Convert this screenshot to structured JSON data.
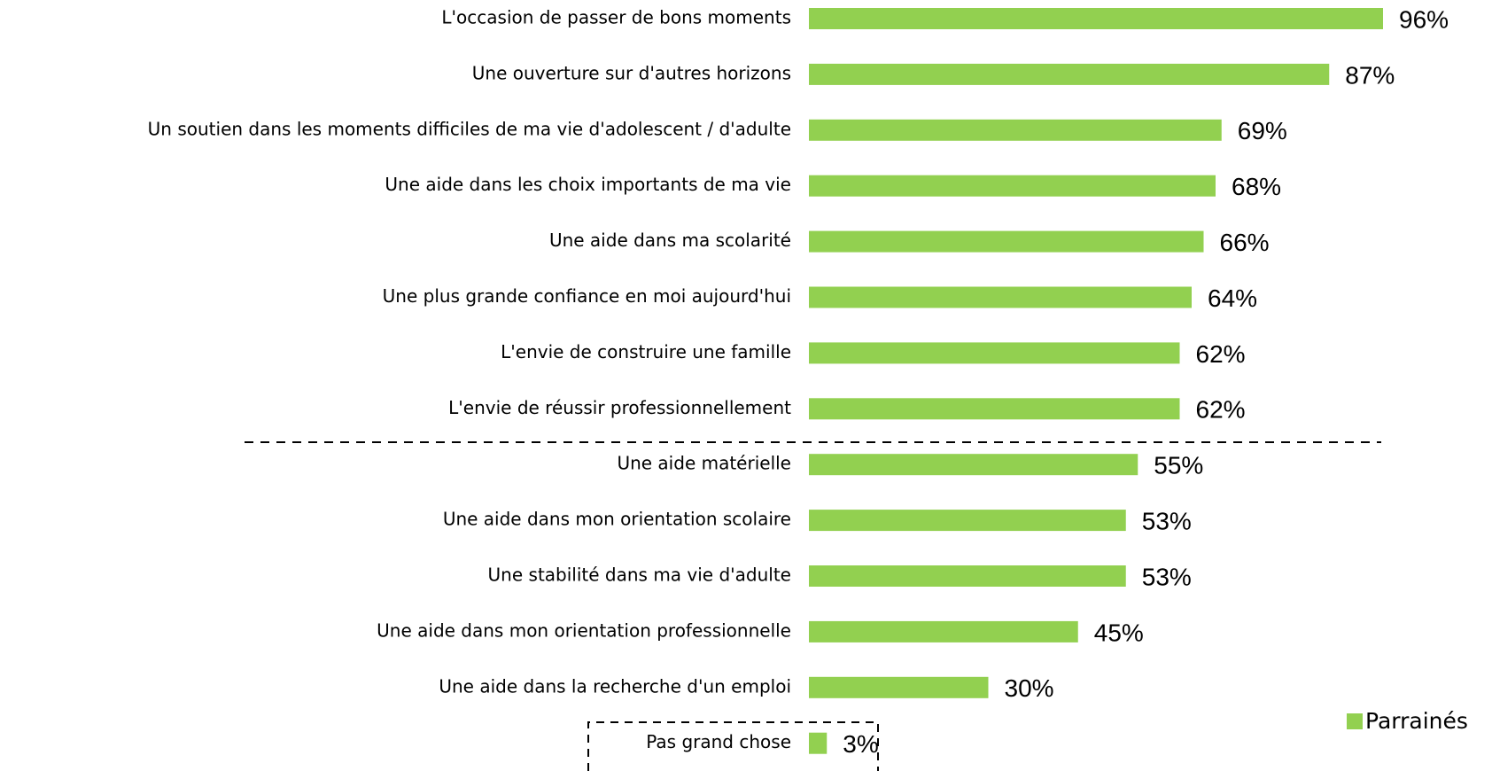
{
  "chart_data": {
    "type": "bar",
    "orientation": "horizontal",
    "categories": [
      "L'occasion de passer de bons moments",
      "Une ouverture sur d'autres horizons",
      "Un soutien dans les moments difficiles de ma vie d'adolescent / d'adulte",
      "Une aide dans les choix importants de ma vie",
      "Une aide dans ma scolarité",
      "Une plus grande confiance en moi aujourd'hui",
      "L'envie de construire une famille",
      "L'envie de réussir professionnellement",
      "Une aide matérielle",
      "Une aide dans mon orientation scolaire",
      "Une stabilité dans ma vie d'adulte",
      "Une aide dans mon orientation professionnelle",
      "Une aide dans la recherche d'un emploi",
      "Pas grand chose"
    ],
    "series": [
      {
        "name": "Parrainés",
        "color": "#92d050",
        "values": [
          96,
          87,
          69,
          68,
          66,
          64,
          62,
          62,
          55,
          53,
          53,
          45,
          30,
          3
        ],
        "value_labels": [
          "96%",
          "87%",
          "69%",
          "68%",
          "66%",
          "64%",
          "62%",
          "62%",
          "55%",
          "53%",
          "53%",
          "45%",
          "30%",
          "3%"
        ]
      }
    ],
    "legend": "bottom-right"
  }
}
